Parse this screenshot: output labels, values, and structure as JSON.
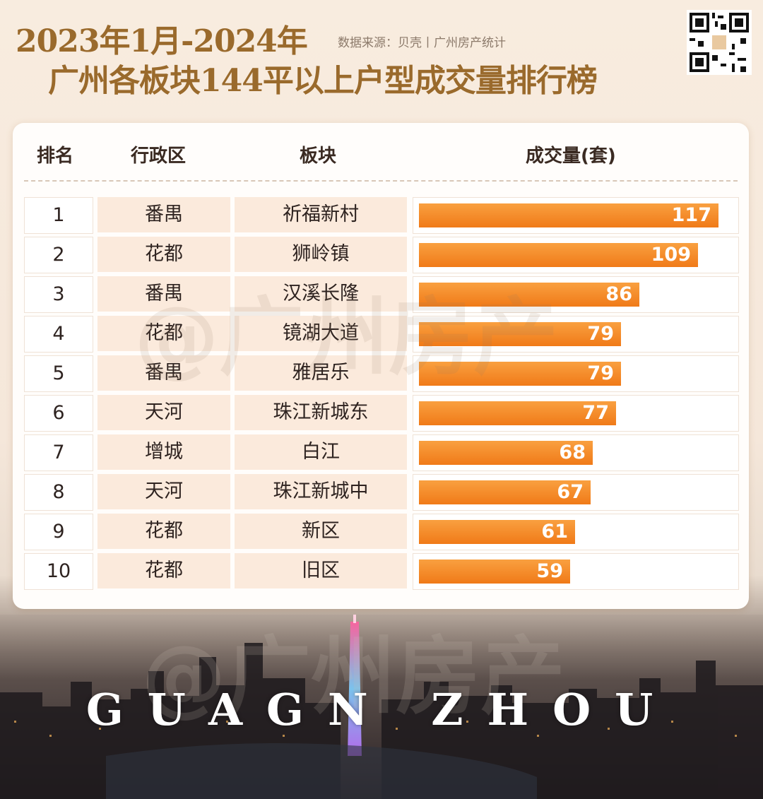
{
  "header": {
    "title_line1": "2023年1月-2024年",
    "title_line2": "广州各板块144平以上户型成交量排行榜",
    "source": "数据来源：贝壳丨广州房产统计"
  },
  "table_headers": {
    "rank": "排名",
    "district": "行政区",
    "block": "板块",
    "volume": "成交量(套)"
  },
  "watermark": "@广州房产",
  "city_name": "GUAGN ZHOU",
  "colors": {
    "bar": "#f07a18",
    "title": "#9a6a2c"
  },
  "chart_data": {
    "type": "bar",
    "orientation": "horizontal",
    "title": "广州各板块144平以上户型成交量排行榜",
    "xlabel": "成交量(套)",
    "ylabel": "",
    "xlim": [
      0,
      117
    ],
    "rows": [
      {
        "rank": "1",
        "district": "番禺",
        "block": "祈福新村",
        "value": 117
      },
      {
        "rank": "2",
        "district": "花都",
        "block": "狮岭镇",
        "value": 109
      },
      {
        "rank": "3",
        "district": "番禺",
        "block": "汉溪长隆",
        "value": 86
      },
      {
        "rank": "4",
        "district": "花都",
        "block": "镜湖大道",
        "value": 79
      },
      {
        "rank": "5",
        "district": "番禺",
        "block": "雅居乐",
        "value": 79
      },
      {
        "rank": "6",
        "district": "天河",
        "block": "珠江新城东",
        "value": 77
      },
      {
        "rank": "7",
        "district": "增城",
        "block": "白江",
        "value": 68
      },
      {
        "rank": "8",
        "district": "天河",
        "block": "珠江新城中",
        "value": 67
      },
      {
        "rank": "9",
        "district": "花都",
        "block": "新区",
        "value": 61
      },
      {
        "rank": "10",
        "district": "花都",
        "block": "旧区",
        "value": 59
      }
    ]
  }
}
